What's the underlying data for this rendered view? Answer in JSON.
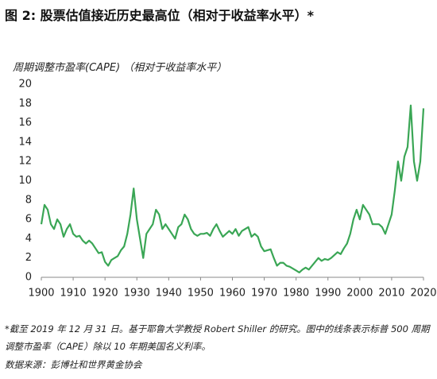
{
  "chart_data": {
    "type": "line",
    "title": "图 2: 股票估值接近历史最高位（相对于收益率水平）*",
    "y_label": "周期调整市盈率(CAPE) （相对于收益率水平）",
    "footnote": "*截至 2019 年 12 月 31 日。基于耶鲁大学教授 Robert Shiller 的研究。图中的线条表示标普 500 周期调整市盈率（CAPE）除以 10 年期美国名义利率。",
    "source": "数据来源：彭博社和世界黄金协会",
    "x": [
      1900,
      1901,
      1902,
      1903,
      1904,
      1905,
      1906,
      1907,
      1908,
      1909,
      1910,
      1911,
      1912,
      1913,
      1914,
      1915,
      1916,
      1917,
      1918,
      1919,
      1920,
      1921,
      1922,
      1923,
      1924,
      1925,
      1926,
      1927,
      1928,
      1929,
      1930,
      1931,
      1932,
      1933,
      1934,
      1935,
      1936,
      1937,
      1938,
      1939,
      1940,
      1941,
      1942,
      1943,
      1944,
      1945,
      1946,
      1947,
      1948,
      1949,
      1950,
      1951,
      1952,
      1953,
      1954,
      1955,
      1956,
      1957,
      1958,
      1959,
      1960,
      1961,
      1962,
      1963,
      1964,
      1965,
      1966,
      1967,
      1968,
      1969,
      1970,
      1971,
      1972,
      1973,
      1974,
      1975,
      1976,
      1977,
      1978,
      1979,
      1980,
      1981,
      1982,
      1983,
      1984,
      1985,
      1986,
      1987,
      1988,
      1989,
      1990,
      1991,
      1992,
      1993,
      1994,
      1995,
      1996,
      1997,
      1998,
      1999,
      2000,
      2001,
      2002,
      2003,
      2004,
      2005,
      2006,
      2007,
      2008,
      2009,
      2010,
      2011,
      2012,
      2013,
      2014,
      2015,
      2016,
      2017,
      2018,
      2019,
      2020
    ],
    "series": [
      {
        "name": "CAPE",
        "color": "#3aa655",
        "values": [
          5.5,
          7.5,
          7,
          5.5,
          5,
          6,
          5.5,
          4.2,
          5,
          5.5,
          4.5,
          4.2,
          4.3,
          3.8,
          3.5,
          3.8,
          3.5,
          3,
          2.5,
          2.6,
          1.6,
          1.2,
          1.8,
          2,
          2.2,
          2.8,
          3.2,
          4.5,
          6.5,
          9.2,
          6,
          4,
          2,
          4.5,
          5,
          5.5,
          7,
          6.5,
          5,
          5.5,
          5,
          4.5,
          4,
          5.2,
          5.5,
          6.5,
          6,
          5,
          4.5,
          4.3,
          4.5,
          4.5,
          4.6,
          4.3,
          5,
          5.5,
          4.8,
          4.2,
          4.5,
          4.8,
          4.5,
          5,
          4.3,
          4.8,
          5,
          5.2,
          4.2,
          4.5,
          4.2,
          3.2,
          2.7,
          2.8,
          2.9,
          2,
          1.2,
          1.5,
          1.5,
          1.2,
          1.1,
          0.9,
          0.7,
          0.5,
          0.8,
          1,
          0.8,
          1.2,
          1.6,
          2,
          1.7,
          1.9,
          1.8,
          2,
          2.3,
          2.6,
          2.4,
          3,
          3.5,
          4.5,
          6,
          7,
          6,
          7.5,
          7,
          6.5,
          5.5,
          5.5,
          5.5,
          5.2,
          4.5,
          5.5,
          6.5,
          9,
          12,
          10,
          12.5,
          13.5,
          17.8,
          12,
          10,
          12,
          17.5
        ]
      }
    ],
    "xlim": [
      1900,
      2020
    ],
    "xticks": [
      1900,
      1910,
      1920,
      1930,
      1940,
      1950,
      1960,
      1970,
      1980,
      1990,
      2000,
      2010,
      2020
    ],
    "ylim": [
      0,
      20
    ],
    "yticks": [
      0,
      2,
      4,
      6,
      8,
      10,
      12,
      14,
      16,
      18,
      20
    ],
    "grid": false
  }
}
